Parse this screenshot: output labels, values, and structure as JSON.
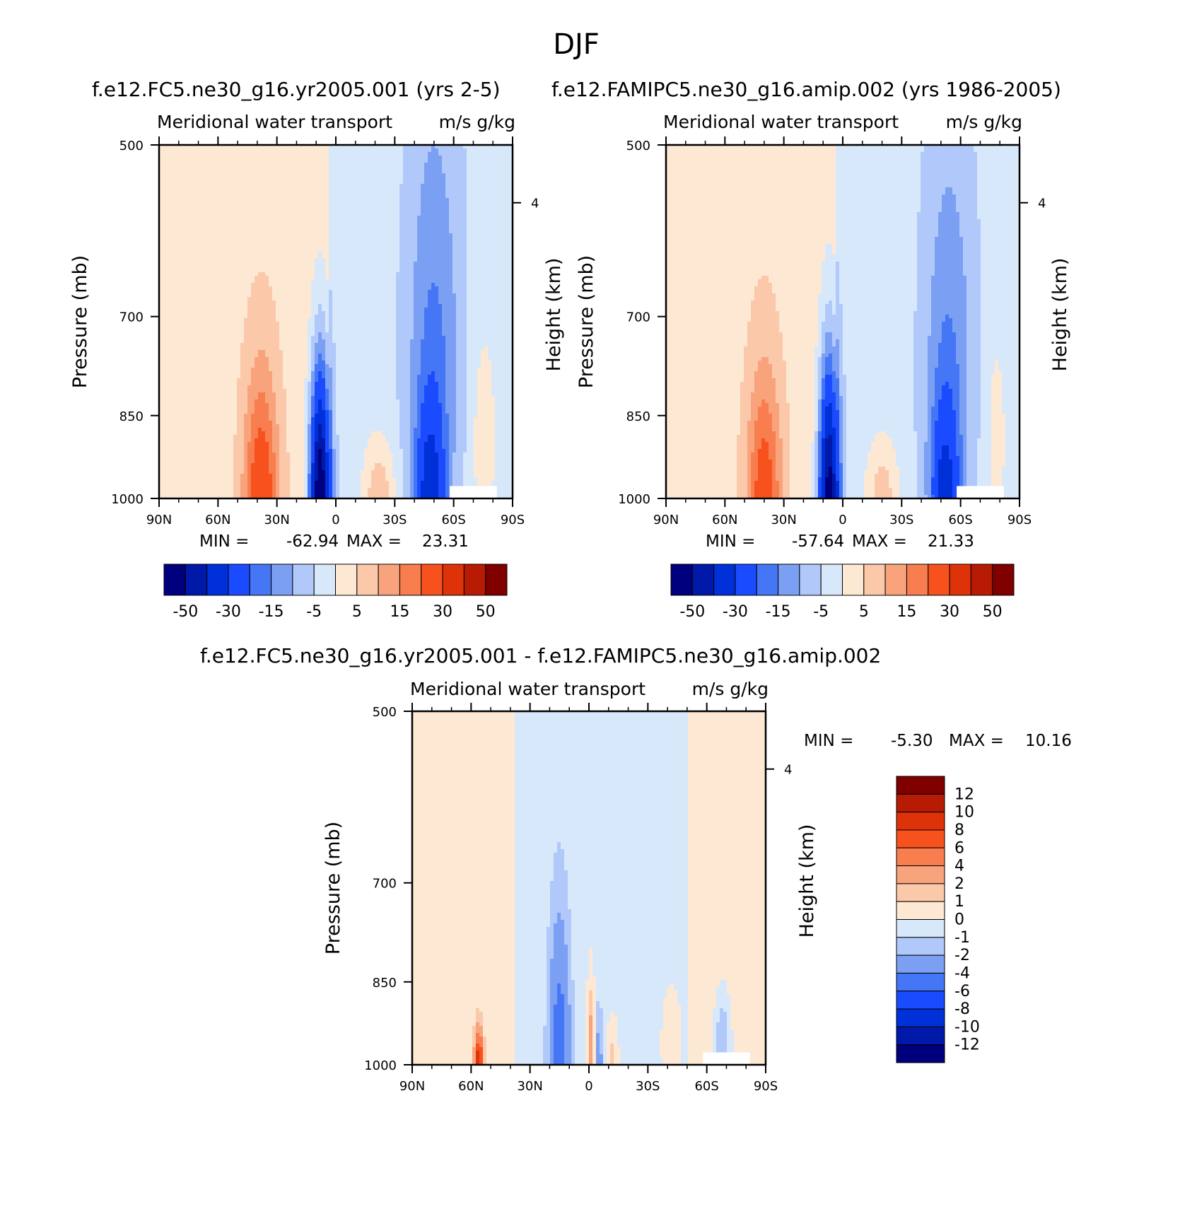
{
  "figure": {
    "title": "DJF"
  },
  "chart_data": [
    {
      "type": "heatmap",
      "title": "f.e12.FC5.ne30_g16.yr2005.001 (yrs 2-5)",
      "subtitle": "Meridional water transport",
      "units": "m/s g/kg",
      "ylabel": "Pressure (mb)",
      "ylabel_right": "Height (km)",
      "xlim": [
        90,
        -90
      ],
      "ylim": [
        1000,
        500
      ],
      "y_scale": "log",
      "xticks": [
        {
          "v": 90,
          "label": "90N"
        },
        {
          "v": 60,
          "label": "60N"
        },
        {
          "v": 30,
          "label": "30N"
        },
        {
          "v": 0,
          "label": "0"
        },
        {
          "v": -30,
          "label": "30S"
        },
        {
          "v": -60,
          "label": "60S"
        },
        {
          "v": -90,
          "label": "90S"
        }
      ],
      "yticks": [
        {
          "v": 500,
          "label": "500"
        },
        {
          "v": 700,
          "label": "700"
        },
        {
          "v": 850,
          "label": "850"
        },
        {
          "v": 1000,
          "label": "1000"
        }
      ],
      "right_ticks": [
        {
          "p": 560,
          "label": "4"
        }
      ],
      "stats": {
        "min_label": "MIN =",
        "min": "-62.94",
        "max_label": "MAX =",
        "max": "23.31"
      },
      "levels": [
        -60,
        -50,
        -40,
        -30,
        -20,
        -15,
        -10,
        -5,
        0,
        5,
        10,
        15,
        20,
        30,
        40,
        50
      ],
      "legend": {
        "position": "bottom",
        "labels": [
          "-50",
          "-30",
          "-15",
          "-5",
          "5",
          "15",
          "30",
          "50"
        ]
      },
      "features": [
        {
          "lat": 38,
          "plev": 1000,
          "amp": 23.31,
          "wlat": 9,
          "wp": 230
        },
        {
          "lat": -22,
          "plev": 1000,
          "amp": 12,
          "wlat": 8,
          "wp": 110
        },
        {
          "lat": -75,
          "plev": 890,
          "amp": 6,
          "wlat": 7,
          "wp": 200
        },
        {
          "lat": 8,
          "plev": 1000,
          "amp": -62.94,
          "wlat": 5,
          "wp": 220
        },
        {
          "lat": -48,
          "plev": 1000,
          "amp": -28,
          "wlat": 7,
          "wp": 160
        },
        {
          "lat": -50,
          "plev": 760,
          "amp": -13,
          "wlat": 14,
          "wp": 330
        }
      ],
      "background": {
        "north": 3,
        "south": -3,
        "edge_lat": 3
      }
    },
    {
      "type": "heatmap",
      "title": "f.e12.FAMIPC5.ne30_g16.amip.002 (yrs 1986-2005)",
      "subtitle": "Meridional water transport",
      "units": "m/s g/kg",
      "ylabel": "Pressure (mb)",
      "ylabel_right": "Height (km)",
      "xlim": [
        90,
        -90
      ],
      "ylim": [
        1000,
        500
      ],
      "y_scale": "log",
      "xticks": [
        {
          "v": 90,
          "label": "90N"
        },
        {
          "v": 60,
          "label": "60N"
        },
        {
          "v": 30,
          "label": "30N"
        },
        {
          "v": 0,
          "label": "0"
        },
        {
          "v": -30,
          "label": "30S"
        },
        {
          "v": -60,
          "label": "60S"
        },
        {
          "v": -90,
          "label": "90S"
        }
      ],
      "yticks": [
        {
          "v": 500,
          "label": "500"
        },
        {
          "v": 700,
          "label": "700"
        },
        {
          "v": 850,
          "label": "850"
        },
        {
          "v": 1000,
          "label": "1000"
        }
      ],
      "right_ticks": [
        {
          "p": 560,
          "label": "4"
        }
      ],
      "stats": {
        "min_label": "MIN =",
        "min": "-57.64",
        "max_label": "MAX =",
        "max": "21.33"
      },
      "levels": [
        -60,
        -50,
        -40,
        -30,
        -20,
        -15,
        -10,
        -5,
        0,
        5,
        10,
        15,
        20,
        30,
        40,
        50
      ],
      "legend": {
        "position": "bottom",
        "labels": [
          "-50",
          "-30",
          "-15",
          "-5",
          "5",
          "15",
          "30",
          "50"
        ]
      },
      "features": [
        {
          "lat": 40,
          "plev": 1000,
          "amp": 21.33,
          "wlat": 9,
          "wp": 230
        },
        {
          "lat": -20,
          "plev": 1000,
          "amp": 11,
          "wlat": 8,
          "wp": 110
        },
        {
          "lat": -78,
          "plev": 890,
          "amp": 5,
          "wlat": 6,
          "wp": 200
        },
        {
          "lat": 7,
          "plev": 1000,
          "amp": -57.64,
          "wlat": 5,
          "wp": 230
        },
        {
          "lat": -52,
          "plev": 1000,
          "amp": -26,
          "wlat": 7,
          "wp": 160
        },
        {
          "lat": -54,
          "plev": 770,
          "amp": -12,
          "wlat": 13,
          "wp": 310
        }
      ],
      "background": {
        "north": 3,
        "south": -3,
        "edge_lat": 3
      }
    },
    {
      "type": "heatmap",
      "title": "f.e12.FC5.ne30_g16.yr2005.001 - f.e12.FAMIPC5.ne30_g16.amip.002",
      "subtitle": "Meridional water transport",
      "units": "m/s g/kg",
      "ylabel": "Pressure (mb)",
      "ylabel_right": "Height (km)",
      "xlim": [
        90,
        -90
      ],
      "ylim": [
        1000,
        500
      ],
      "y_scale": "log",
      "xticks": [
        {
          "v": 90,
          "label": "90N"
        },
        {
          "v": 60,
          "label": "60N"
        },
        {
          "v": 30,
          "label": "30N"
        },
        {
          "v": 0,
          "label": "0"
        },
        {
          "v": -30,
          "label": "30S"
        },
        {
          "v": -60,
          "label": "60S"
        },
        {
          "v": -90,
          "label": "90S"
        }
      ],
      "yticks": [
        {
          "v": 500,
          "label": "500"
        },
        {
          "v": 700,
          "label": "700"
        },
        {
          "v": 850,
          "label": "850"
        },
        {
          "v": 1000,
          "label": "1000"
        }
      ],
      "right_ticks": [
        {
          "p": 560,
          "label": "4"
        }
      ],
      "stats": {
        "min_label": "MIN =",
        "min": "-5.30",
        "max_label": "MAX =",
        "max": "10.16"
      },
      "levels": [
        -14,
        -12,
        -10,
        -8,
        -6,
        -4,
        -2,
        -1,
        0,
        1,
        2,
        4,
        6,
        8,
        10,
        12
      ],
      "legend": {
        "position": "right",
        "labels": [
          "12",
          "10",
          "8",
          "6",
          "4",
          "2",
          "1",
          "0",
          "-1",
          "-2",
          "-4",
          "-6",
          "-8",
          "-10",
          "-12"
        ]
      },
      "features": [
        {
          "lat": 56,
          "plev": 1000,
          "amp": 10.16,
          "wlat": 2,
          "wp": 60
        },
        {
          "lat": -1,
          "plev": 990,
          "amp": 3.5,
          "wlat": 2,
          "wp": 140
        },
        {
          "lat": -12,
          "plev": 990,
          "amp": 1.8,
          "wlat": 3,
          "wp": 80
        },
        {
          "lat": -42,
          "plev": 960,
          "amp": 1.5,
          "wlat": 5,
          "wp": 100
        },
        {
          "lat": 15,
          "plev": 1000,
          "amp": -5.3,
          "wlat": 5,
          "wp": 230
        },
        {
          "lat": -5,
          "plev": 1000,
          "amp": -2.5,
          "wlat": 2,
          "wp": 100
        },
        {
          "lat": -68,
          "plev": 960,
          "amp": -2.5,
          "wlat": 4,
          "wp": 90
        }
      ],
      "background": {
        "north": 0.5,
        "south": 0.5,
        "mid": -0.5,
        "mid_from": 38,
        "mid_to": -50
      }
    }
  ],
  "colors": [
    "#00007f",
    "#0019a8",
    "#0030d7",
    "#1a4bff",
    "#4476f5",
    "#7b9ff2",
    "#b0c9fa",
    "#d8e8fb",
    "#fde8d4",
    "#fcc8aa",
    "#f9a37c",
    "#f87d4f",
    "#f7521e",
    "#de3208",
    "#b71b03",
    "#800000"
  ]
}
